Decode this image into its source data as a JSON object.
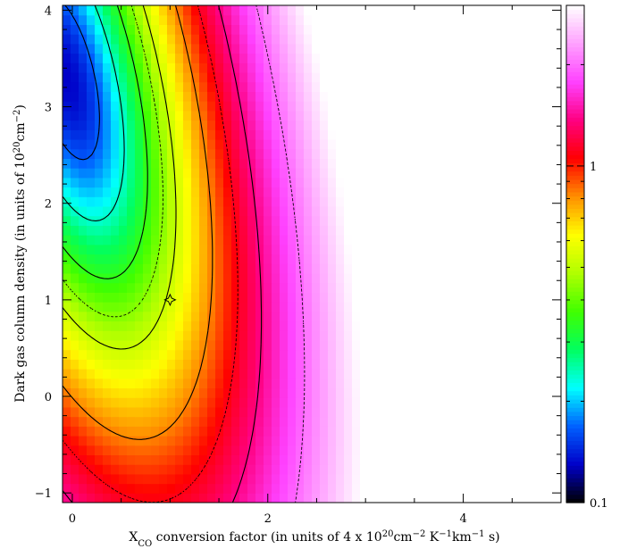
{
  "chart_data": {
    "type": "heatmap",
    "xlabel": {
      "prefix": "X",
      "prefix_sub": "CO",
      "mid1": " conversion factor (in units of 4 x 10",
      "exp1": "20",
      "mid2": "cm",
      "exp2": "−2",
      "mid3": " K",
      "exp3": "−1",
      "mid4": "km",
      "exp4": "−1",
      "suffix": " s)"
    },
    "ylabel": {
      "prefix": "Dark gas column density (in units of 10",
      "exp1": "20",
      "mid": "cm",
      "exp2": "−2",
      "suffix": ")"
    },
    "xlim": [
      -0.1,
      5.0
    ],
    "ylim": [
      -1.1,
      4.05
    ],
    "x_ticks": [
      {
        "value": 0,
        "label": "0"
      },
      {
        "value": 2,
        "label": "2"
      },
      {
        "value": 4,
        "label": "4"
      }
    ],
    "y_ticks": [
      {
        "value": -1,
        "label": "−1"
      },
      {
        "value": 0,
        "label": "0"
      },
      {
        "value": 1,
        "label": "1"
      },
      {
        "value": 2,
        "label": "2"
      },
      {
        "value": 3,
        "label": "3"
      },
      {
        "value": 4,
        "label": "4"
      }
    ],
    "colorbar": {
      "scale": "log",
      "range": [
        0.1,
        3.0
      ],
      "ticks": [
        {
          "value": 0.1,
          "label": "0.1"
        },
        {
          "value": 1,
          "label": "1"
        }
      ],
      "colors": [
        "#000000",
        "#0000c8",
        "#0060ff",
        "#00ffff",
        "#00ff60",
        "#40ff00",
        "#b0ff00",
        "#ffff00",
        "#ff9000",
        "#ff0000",
        "#ff0080",
        "#ff40ff",
        "#ffa0ff",
        "#ffffff"
      ]
    },
    "best_fit_marker": {
      "x": 1.0,
      "y": 1.0,
      "symbol": "star"
    },
    "grid": false,
    "legend": "none"
  }
}
